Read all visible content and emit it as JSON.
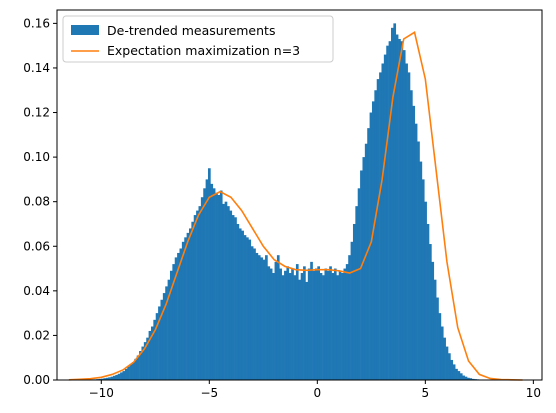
{
  "chart_data": {
    "type": "bar",
    "title": "",
    "xlabel": "",
    "ylabel": "",
    "xlim": [
      -12.05,
      10.4
    ],
    "ylim": [
      0,
      0.166
    ],
    "xticks": [
      -10,
      -5,
      0,
      5,
      10
    ],
    "xtick_labels": [
      "−10",
      "−5",
      "0",
      "5",
      "10"
    ],
    "yticks": [
      0,
      0.02,
      0.04,
      0.06,
      0.08,
      0.1,
      0.12,
      0.14,
      0.16
    ],
    "ytick_labels": [
      "0.00",
      "0.02",
      "0.04",
      "0.06",
      "0.08",
      "0.10",
      "0.12",
      "0.14",
      "0.16"
    ],
    "grid": false,
    "legend": {
      "placement": "top-left"
    },
    "colors": {
      "histogram": "#1f77b4",
      "fit": "#ff7f0e"
    },
    "series": [
      {
        "name": "De-trended measurements",
        "type": "histogram",
        "bin_start": -11.0,
        "bin_width": 0.11,
        "values": [
          0.0001,
          0.0001,
          0.0001,
          0.0002,
          0.0002,
          0.0003,
          0.0003,
          0.0004,
          0.0005,
          0.0006,
          0.0008,
          0.001,
          0.0012,
          0.0015,
          0.0019,
          0.0023,
          0.0028,
          0.0034,
          0.004,
          0.005,
          0.006,
          0.007,
          0.008,
          0.0095,
          0.011,
          0.013,
          0.015,
          0.017,
          0.019,
          0.022,
          0.024,
          0.027,
          0.03,
          0.033,
          0.036,
          0.039,
          0.042,
          0.045,
          0.049,
          0.052,
          0.055,
          0.057,
          0.059,
          0.062,
          0.064,
          0.066,
          0.068,
          0.071,
          0.074,
          0.076,
          0.078,
          0.082,
          0.086,
          0.09,
          0.095,
          0.088,
          0.086,
          0.084,
          0.083,
          0.085,
          0.079,
          0.08,
          0.078,
          0.076,
          0.074,
          0.073,
          0.07,
          0.068,
          0.067,
          0.065,
          0.064,
          0.063,
          0.06,
          0.059,
          0.057,
          0.056,
          0.055,
          0.054,
          0.056,
          0.051,
          0.05,
          0.048,
          0.053,
          0.056,
          0.05,
          0.047,
          0.049,
          0.051,
          0.048,
          0.05,
          0.047,
          0.052,
          0.045,
          0.048,
          0.051,
          0.044,
          0.05,
          0.053,
          0.049,
          0.05,
          0.051,
          0.048,
          0.047,
          0.05,
          0.049,
          0.051,
          0.048,
          0.05,
          0.047,
          0.049,
          0.048,
          0.05,
          0.052,
          0.056,
          0.062,
          0.07,
          0.078,
          0.086,
          0.094,
          0.1,
          0.106,
          0.113,
          0.12,
          0.125,
          0.13,
          0.135,
          0.138,
          0.142,
          0.146,
          0.15,
          0.152,
          0.158,
          0.16,
          0.155,
          0.153,
          0.152,
          0.148,
          0.142,
          0.138,
          0.13,
          0.123,
          0.115,
          0.107,
          0.098,
          0.09,
          0.08,
          0.07,
          0.061,
          0.053,
          0.045,
          0.037,
          0.03,
          0.024,
          0.019,
          0.015,
          0.012,
          0.009,
          0.007,
          0.005,
          0.004,
          0.003,
          0.002,
          0.0015,
          0.001,
          0.0008,
          0.0005,
          0.0004,
          0.0003,
          0.0002,
          0.0001
        ]
      },
      {
        "name": "Expectation maximization n=3",
        "type": "line",
        "x": [
          -11.5,
          -11.0,
          -10.5,
          -10.0,
          -9.5,
          -9.0,
          -8.5,
          -8.0,
          -7.5,
          -7.0,
          -6.5,
          -6.0,
          -5.5,
          -5.0,
          -4.5,
          -4.0,
          -3.5,
          -3.0,
          -2.5,
          -2.0,
          -1.5,
          -1.0,
          -0.5,
          0.0,
          0.5,
          1.0,
          1.5,
          2.0,
          2.5,
          3.0,
          3.5,
          4.0,
          4.5,
          5.0,
          5.5,
          6.0,
          6.5,
          7.0,
          7.5,
          8.0,
          8.5,
          9.0,
          9.5
        ],
        "y": [
          0.0001,
          0.0003,
          0.0006,
          0.0012,
          0.0025,
          0.0045,
          0.008,
          0.014,
          0.0225,
          0.034,
          0.048,
          0.062,
          0.074,
          0.082,
          0.0845,
          0.082,
          0.076,
          0.068,
          0.06,
          0.054,
          0.051,
          0.0495,
          0.0492,
          0.0495,
          0.0495,
          0.049,
          0.048,
          0.05,
          0.062,
          0.09,
          0.127,
          0.153,
          0.156,
          0.135,
          0.094,
          0.053,
          0.0235,
          0.0085,
          0.0025,
          0.0007,
          0.0002,
          0.0001,
          0.0
        ]
      }
    ]
  }
}
